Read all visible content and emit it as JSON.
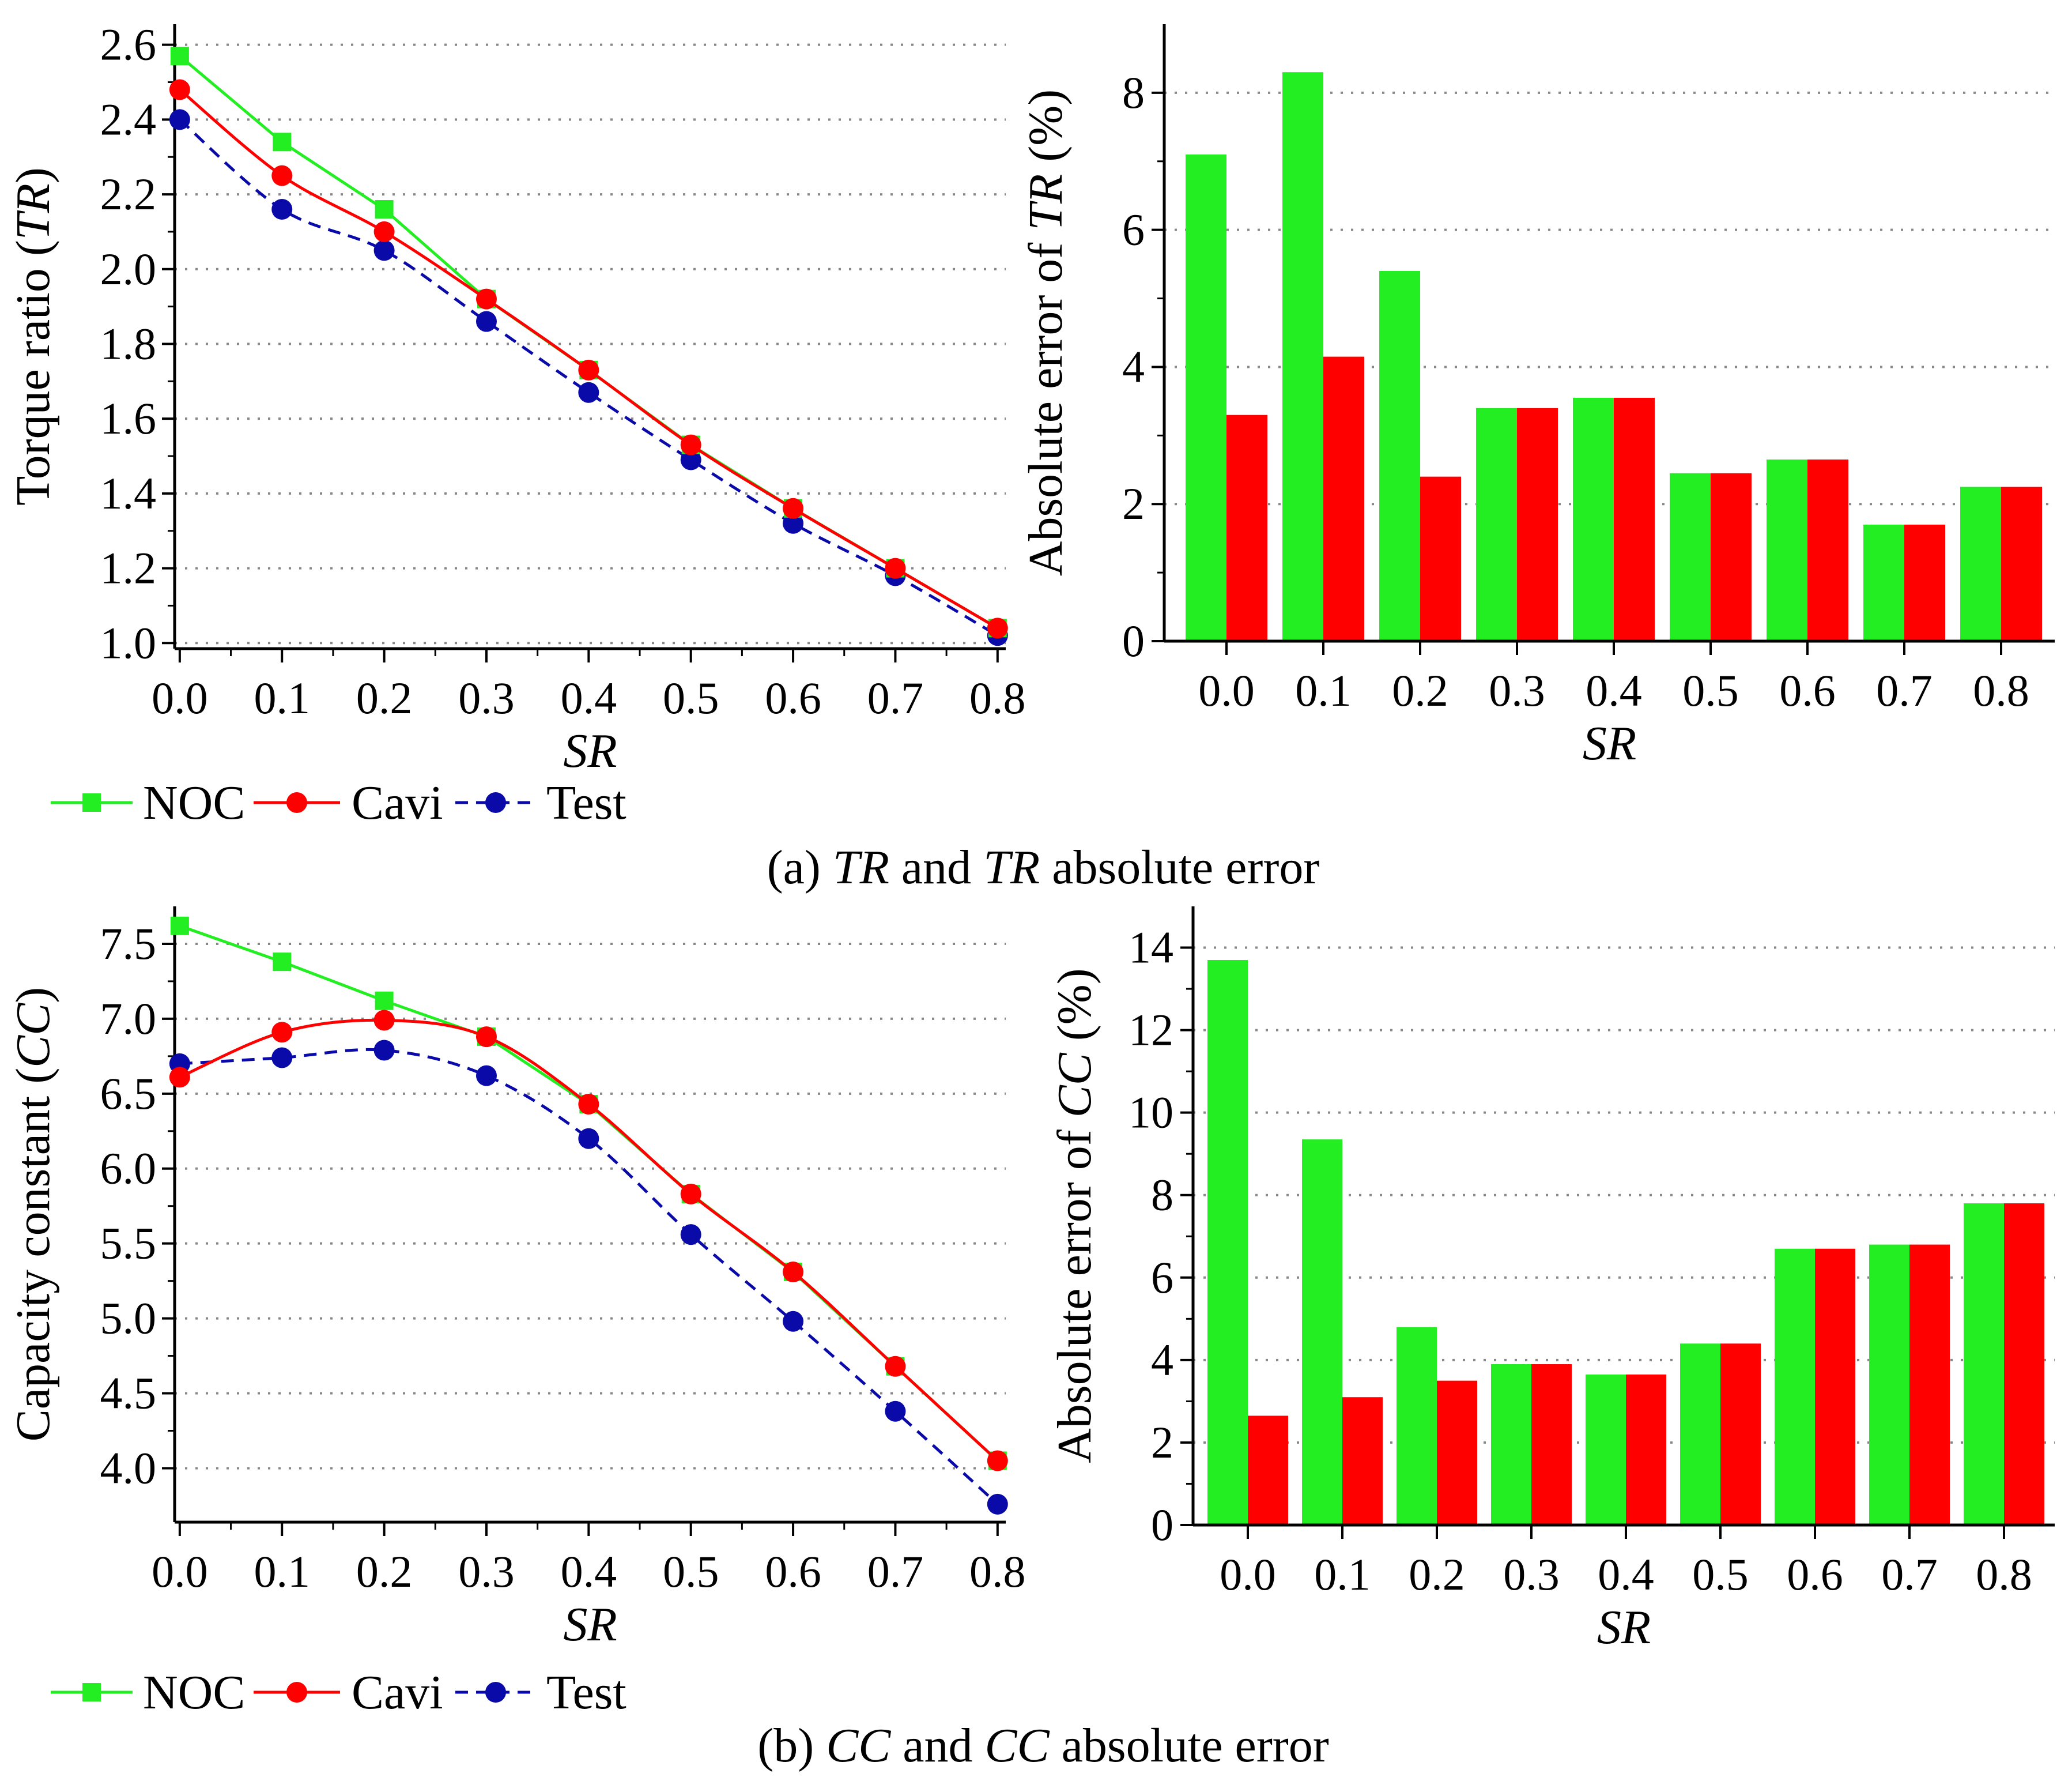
{
  "colors": {
    "noc": "#22ee22",
    "cavi": "#ff0000",
    "test": "#0a0aa8",
    "grid": "#888888",
    "axis": "#000000"
  },
  "panels": [
    {
      "caption": {
        "prefix": "(a) ",
        "var1": "TR",
        "mid": " and ",
        "var2": "TR",
        "suffix": " absolute error"
      },
      "legend": [
        "NOC",
        "Cavi",
        "Test"
      ],
      "line_chart": {
        "type": "line",
        "xlabel": "SR",
        "ylabel": {
          "prefix": "Torque ratio (",
          "var": "TR",
          "suffix": ")"
        },
        "x": [
          0.0,
          0.1,
          0.2,
          0.3,
          0.4,
          0.5,
          0.6,
          0.7,
          0.8
        ],
        "xticks": [
          "0.0",
          "0.1",
          "0.2",
          "0.3",
          "0.4",
          "0.5",
          "0.6",
          "0.7",
          "0.8"
        ],
        "yticks": [
          "1.0",
          "1.2",
          "1.4",
          "1.6",
          "1.8",
          "2.0",
          "2.2",
          "2.4",
          "2.6"
        ],
        "ylim": [
          0.985,
          2.655
        ],
        "series": [
          {
            "name": "NOC",
            "values": [
              2.57,
              2.34,
              2.16,
              1.92,
              1.73,
              1.53,
              1.36,
              1.2,
              1.04
            ]
          },
          {
            "name": "Cavi",
            "values": [
              2.48,
              2.25,
              2.1,
              1.92,
              1.73,
              1.53,
              1.36,
              1.2,
              1.04
            ]
          },
          {
            "name": "Test",
            "values": [
              2.4,
              2.16,
              2.05,
              1.86,
              1.67,
              1.49,
              1.32,
              1.18,
              1.02
            ]
          }
        ]
      },
      "bar_chart": {
        "type": "bar",
        "xlabel": "SR",
        "ylabel": {
          "prefix": "Absolute error of ",
          "var": "TR",
          "suffix": " (%)"
        },
        "categories": [
          "0.0",
          "0.1",
          "0.2",
          "0.3",
          "0.4",
          "0.5",
          "0.6",
          "0.7",
          "0.8"
        ],
        "yticks": [
          "0",
          "2",
          "4",
          "6",
          "8"
        ],
        "ylim": [
          0,
          9
        ],
        "series": [
          {
            "name": "NOC",
            "values": [
              7.1,
              8.3,
              5.4,
              3.4,
              3.55,
              2.45,
              2.65,
              1.7,
              2.25
            ]
          },
          {
            "name": "Cavi",
            "values": [
              3.3,
              4.15,
              2.4,
              3.4,
              3.55,
              2.45,
              2.65,
              1.7,
              2.25
            ]
          }
        ]
      }
    },
    {
      "caption": {
        "prefix": "(b) ",
        "var1": "CC",
        "mid": " and ",
        "var2": "CC",
        "suffix": " absolute error"
      },
      "legend": [
        "NOC",
        "Cavi",
        "Test"
      ],
      "line_chart": {
        "type": "line",
        "xlabel": "SR",
        "ylabel": {
          "prefix": "Capacity constant (",
          "var": "CC",
          "suffix": ")"
        },
        "x": [
          0.0,
          0.1,
          0.2,
          0.3,
          0.4,
          0.5,
          0.6,
          0.7,
          0.8
        ],
        "xticks": [
          "0.0",
          "0.1",
          "0.2",
          "0.3",
          "0.4",
          "0.5",
          "0.6",
          "0.7",
          "0.8"
        ],
        "yticks": [
          "4.0",
          "4.5",
          "5.0",
          "5.5",
          "6.0",
          "6.5",
          "7.0",
          "7.5"
        ],
        "ylim": [
          3.64,
          7.75
        ],
        "series": [
          {
            "name": "NOC",
            "values": [
              7.62,
              7.38,
              7.12,
              6.88,
              6.43,
              5.83,
              5.31,
              4.68,
              4.05
            ]
          },
          {
            "name": "Cavi",
            "values": [
              6.61,
              6.91,
              6.99,
              6.88,
              6.43,
              5.83,
              5.31,
              4.68,
              4.05
            ]
          },
          {
            "name": "Test",
            "values": [
              6.7,
              6.74,
              6.79,
              6.62,
              6.2,
              5.56,
              4.98,
              4.38,
              3.76
            ]
          }
        ]
      },
      "bar_chart": {
        "type": "bar",
        "xlabel": "SR",
        "ylabel": {
          "prefix": "Absolute error of ",
          "var": "CC",
          "suffix": " (%)"
        },
        "categories": [
          "0.0",
          "0.1",
          "0.2",
          "0.3",
          "0.4",
          "0.5",
          "0.6",
          "0.7",
          "0.8"
        ],
        "yticks": [
          "0",
          "2",
          "4",
          "6",
          "8",
          "10",
          "12",
          "14"
        ],
        "ylim": [
          0,
          15
        ],
        "series": [
          {
            "name": "NOC",
            "values": [
              13.7,
              9.35,
              4.8,
              3.9,
              3.65,
              4.4,
              6.7,
              6.8,
              7.8
            ]
          },
          {
            "name": "Cavi",
            "values": [
              2.65,
              3.1,
              3.5,
              3.9,
              3.65,
              4.4,
              6.7,
              6.8,
              7.8
            ]
          }
        ]
      }
    }
  ],
  "chart_data": [
    {
      "type": "line",
      "title": "",
      "xlabel": "SR",
      "ylabel": "Torque ratio (TR)",
      "x": [
        0.0,
        0.1,
        0.2,
        0.3,
        0.4,
        0.5,
        0.6,
        0.7,
        0.8
      ],
      "series": [
        {
          "name": "NOC",
          "values": [
            2.57,
            2.34,
            2.16,
            1.92,
            1.73,
            1.53,
            1.36,
            1.2,
            1.04
          ]
        },
        {
          "name": "Cavi",
          "values": [
            2.48,
            2.25,
            2.1,
            1.92,
            1.73,
            1.53,
            1.36,
            1.2,
            1.04
          ]
        },
        {
          "name": "Test",
          "values": [
            2.4,
            2.16,
            2.05,
            1.86,
            1.67,
            1.49,
            1.32,
            1.18,
            1.02
          ]
        }
      ],
      "ylim": [
        0.985,
        2.655
      ],
      "grid": true
    },
    {
      "type": "bar",
      "title": "",
      "xlabel": "SR",
      "ylabel": "Absolute error of TR (%)",
      "categories": [
        "0.0",
        "0.1",
        "0.2",
        "0.3",
        "0.4",
        "0.5",
        "0.6",
        "0.7",
        "0.8"
      ],
      "series": [
        {
          "name": "NOC",
          "values": [
            7.1,
            8.3,
            5.4,
            3.4,
            3.55,
            2.45,
            2.65,
            1.7,
            2.25
          ]
        },
        {
          "name": "Cavi",
          "values": [
            3.3,
            4.15,
            2.4,
            3.4,
            3.55,
            2.45,
            2.65,
            1.7,
            2.25
          ]
        }
      ],
      "ylim": [
        0,
        9
      ],
      "grid": true
    },
    {
      "type": "line",
      "title": "",
      "xlabel": "SR",
      "ylabel": "Capacity constant (CC)",
      "x": [
        0.0,
        0.1,
        0.2,
        0.3,
        0.4,
        0.5,
        0.6,
        0.7,
        0.8
      ],
      "series": [
        {
          "name": "NOC",
          "values": [
            7.62,
            7.38,
            7.12,
            6.88,
            6.43,
            5.83,
            5.31,
            4.68,
            4.05
          ]
        },
        {
          "name": "Cavi",
          "values": [
            6.61,
            6.91,
            6.99,
            6.88,
            6.43,
            5.83,
            5.31,
            4.68,
            4.05
          ]
        },
        {
          "name": "Test",
          "values": [
            6.7,
            6.74,
            6.79,
            6.62,
            6.2,
            5.56,
            4.98,
            4.38,
            3.76
          ]
        }
      ],
      "ylim": [
        3.64,
        7.75
      ],
      "grid": true
    },
    {
      "type": "bar",
      "title": "",
      "xlabel": "SR",
      "ylabel": "Absolute error of CC (%)",
      "categories": [
        "0.0",
        "0.1",
        "0.2",
        "0.3",
        "0.4",
        "0.5",
        "0.6",
        "0.7",
        "0.8"
      ],
      "series": [
        {
          "name": "NOC",
          "values": [
            13.7,
            9.35,
            4.8,
            3.9,
            3.65,
            4.4,
            6.7,
            6.8,
            7.8
          ]
        },
        {
          "name": "Cavi",
          "values": [
            2.65,
            3.1,
            3.5,
            3.9,
            3.65,
            4.4,
            6.7,
            6.8,
            7.8
          ]
        }
      ],
      "ylim": [
        0,
        15
      ],
      "grid": true
    }
  ]
}
